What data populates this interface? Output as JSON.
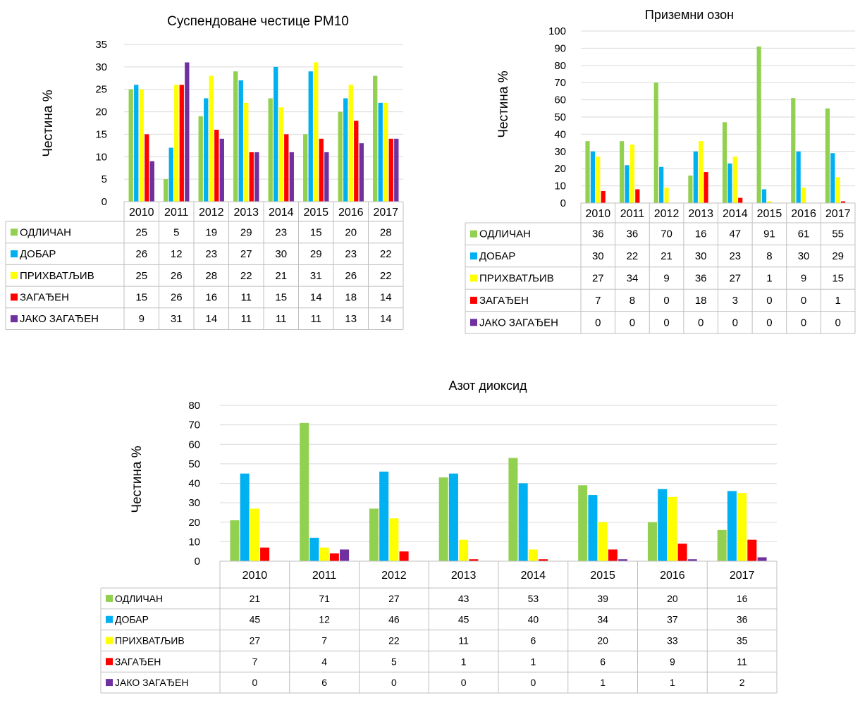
{
  "colors": {
    "ОДЛИЧАН": "#92d050",
    "ДОБАР": "#00b0f0",
    "ПРИХВАТЉИВ": "#ffff00",
    "ЗАГАЂЕН": "#ff0000",
    "ЈАКО ЗАГАЂЕН": "#7030a0",
    "grid": "#d9d9d9",
    "table_border": "#bfbfbf"
  },
  "chart_data": [
    {
      "type": "bar",
      "title": "Суспендоване честице PM10",
      "ylabel": "Честина %",
      "xlabel": "",
      "ylim": [
        0,
        35
      ],
      "y_step": 5,
      "grid": true,
      "legend": "data-table",
      "categories": [
        "2010",
        "2011",
        "2012",
        "2013",
        "2014",
        "2015",
        "2016",
        "2017"
      ],
      "series": [
        {
          "name": "ОДЛИЧАН",
          "values": [
            25,
            5,
            19,
            29,
            23,
            15,
            20,
            28
          ]
        },
        {
          "name": "ДОБАР",
          "values": [
            26,
            12,
            23,
            27,
            30,
            29,
            23,
            22
          ]
        },
        {
          "name": "ПРИХВАТЉИВ",
          "values": [
            25,
            26,
            28,
            22,
            21,
            31,
            26,
            22
          ]
        },
        {
          "name": "ЗАГАЂЕН",
          "values": [
            15,
            26,
            16,
            11,
            15,
            14,
            18,
            14
          ]
        },
        {
          "name": "ЈАКО ЗАГАЂЕН",
          "values": [
            9,
            31,
            14,
            11,
            11,
            11,
            13,
            14
          ]
        }
      ]
    },
    {
      "type": "bar",
      "title": "Приземни озон",
      "ylabel": "Честина %",
      "xlabel": "",
      "ylim": [
        0,
        100
      ],
      "y_step": 10,
      "grid": true,
      "legend": "data-table",
      "categories": [
        "2010",
        "2011",
        "2012",
        "2013",
        "2014",
        "2015",
        "2016",
        "2017"
      ],
      "series": [
        {
          "name": "ОДЛИЧАН",
          "values": [
            36,
            36,
            70,
            16,
            47,
            91,
            61,
            55
          ]
        },
        {
          "name": "ДОБАР",
          "values": [
            30,
            22,
            21,
            30,
            23,
            8,
            30,
            29
          ]
        },
        {
          "name": "ПРИХВАТЉИВ",
          "values": [
            27,
            34,
            9,
            36,
            27,
            1,
            9,
            15
          ]
        },
        {
          "name": "ЗАГАЂЕН",
          "values": [
            7,
            8,
            0,
            18,
            3,
            0,
            0,
            1
          ]
        },
        {
          "name": "ЈАКО ЗАГАЂЕН",
          "values": [
            0,
            0,
            0,
            0,
            0,
            0,
            0,
            0
          ]
        }
      ]
    },
    {
      "type": "bar",
      "title": "Азот диоксид",
      "ylabel": "Честина %",
      "xlabel": "",
      "ylim": [
        0,
        80
      ],
      "y_step": 10,
      "grid": true,
      "legend": "data-table",
      "categories": [
        "2010",
        "2011",
        "2012",
        "2013",
        "2014",
        "2015",
        "2016",
        "2017"
      ],
      "series": [
        {
          "name": "ОДЛИЧАН",
          "values": [
            21,
            71,
            27,
            43,
            53,
            39,
            20,
            16
          ]
        },
        {
          "name": "ДОБАР",
          "values": [
            45,
            12,
            46,
            45,
            40,
            34,
            37,
            36
          ]
        },
        {
          "name": "ПРИХВАТЉИВ",
          "values": [
            27,
            7,
            22,
            11,
            6,
            20,
            33,
            35
          ]
        },
        {
          "name": "ЗАГАЂЕН",
          "values": [
            7,
            4,
            5,
            1,
            1,
            6,
            9,
            11
          ]
        },
        {
          "name": "ЈАКО ЗАГАЂЕН",
          "values": [
            0,
            6,
            0,
            0,
            0,
            1,
            1,
            2
          ]
        }
      ]
    }
  ]
}
